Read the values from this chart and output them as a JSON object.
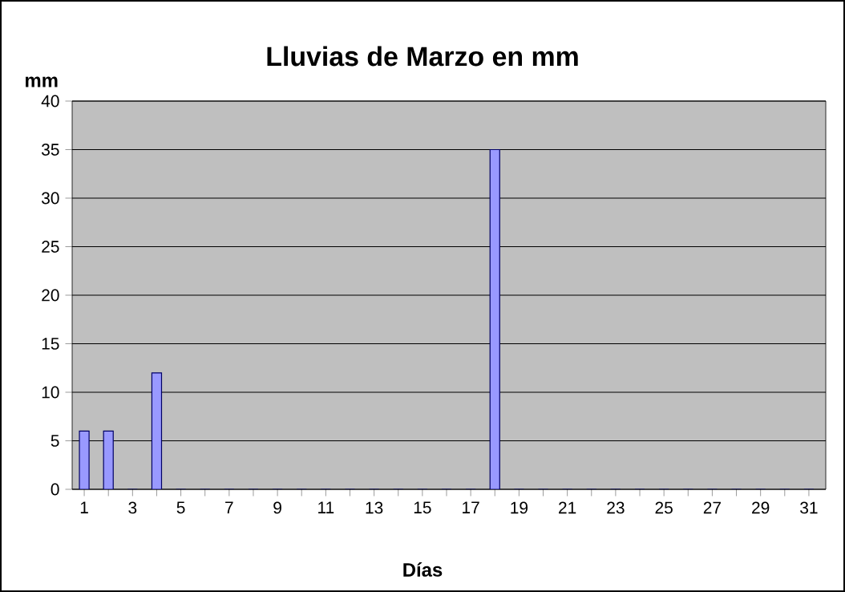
{
  "chart_data": {
    "type": "bar",
    "title": "Lluvias de Marzo en mm",
    "xlabel": "Días",
    "ylabel": "mm",
    "categories": [
      "1",
      null,
      "3",
      null,
      "5",
      null,
      "7",
      null,
      "9",
      null,
      "11",
      null,
      "13",
      null,
      "15",
      null,
      "17",
      null,
      "19",
      null,
      "21",
      null,
      "23",
      null,
      "25",
      null,
      "27",
      null,
      "29",
      null,
      "31"
    ],
    "values": [
      6,
      6,
      0,
      12,
      0,
      0,
      0,
      0,
      0,
      0,
      0,
      0,
      0,
      0,
      0,
      0,
      0,
      35,
      0,
      0,
      0,
      0,
      0,
      0,
      0,
      0,
      0,
      0,
      0,
      0,
      0
    ],
    "color": "#9999ff",
    "ylim": [
      0,
      40
    ],
    "yticks": [
      0,
      5,
      10,
      15,
      20,
      25,
      30,
      35,
      40
    ],
    "grid": "y"
  }
}
